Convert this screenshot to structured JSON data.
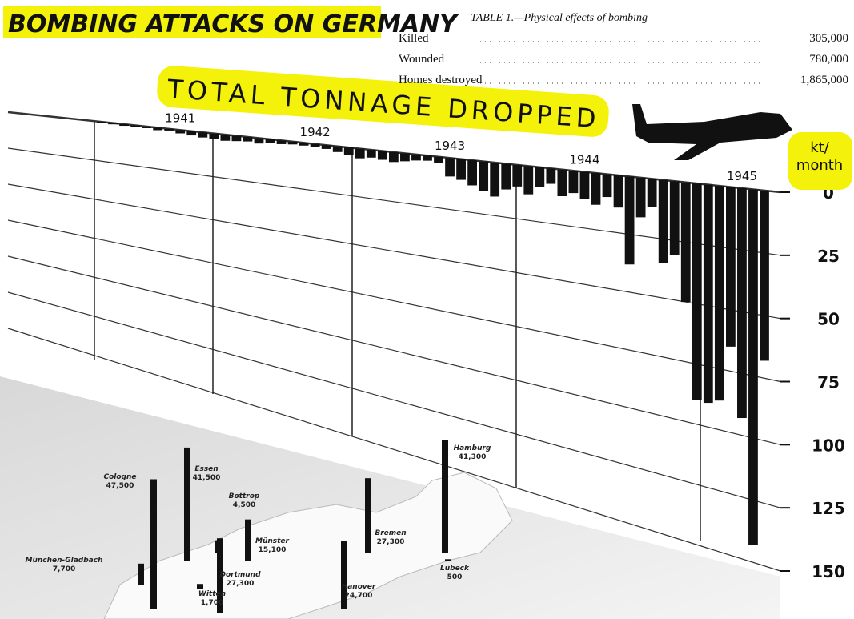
{
  "chart_data": {
    "type": "bar",
    "title": "BOMBING ATTACKS ON GERMANY",
    "subtitle": "TOTAL TONNAGE DROPPED",
    "y_label": "kt/ month",
    "categories": [
      null,
      null,
      null,
      null,
      null,
      null,
      null,
      "1941",
      null,
      null,
      null,
      null,
      null,
      null,
      null,
      null,
      null,
      null,
      null,
      "1942",
      null,
      null,
      null,
      null,
      null,
      null,
      null,
      null,
      null,
      null,
      null,
      "1943",
      null,
      null,
      null,
      null,
      null,
      null,
      null,
      null,
      null,
      null,
      null,
      "1944",
      null,
      null,
      null,
      null,
      null,
      null,
      null,
      null,
      null,
      null,
      null,
      null,
      null,
      "1945",
      null,
      null
    ],
    "values": [
      0.5,
      0.8,
      1,
      1.2,
      1,
      1.5,
      1,
      2,
      2.5,
      3,
      3,
      3.5,
      3,
      2.5,
      3,
      2,
      2,
      1.5,
      1.5,
      1.5,
      2,
      3,
      4,
      5,
      4,
      4.5,
      5,
      4,
      3,
      2.5,
      3,
      9,
      10,
      12,
      14,
      16,
      12,
      10,
      13,
      9,
      7,
      12,
      10,
      12,
      14,
      10,
      14,
      38,
      17,
      12,
      35,
      31,
      50,
      90,
      90,
      88,
      65,
      93,
      143,
      68
    ],
    "color": "#111111",
    "ylim": [
      0,
      150
    ],
    "yticks": [
      0,
      25,
      50,
      75,
      100,
      125,
      150
    ],
    "grid": true,
    "cities": {
      "names": [
        "Cologne",
        "Essen",
        "Bottrop",
        "München-Gladbach",
        "Münster",
        "Dortmund",
        "Witten",
        "Bremen",
        "Hanover",
        "Hamburg",
        "Lübeck"
      ],
      "values": [
        47500,
        41500,
        4500,
        7700,
        15100,
        27300,
        1700,
        27300,
        24700,
        41300,
        500
      ],
      "value_labels": [
        "47,500",
        "41,500",
        "4,500",
        "7,700",
        "15,100",
        "27,300",
        "1,700",
        "27,300",
        "24,700",
        "41,300",
        "500"
      ]
    }
  },
  "table": {
    "title": "TABLE 1.—Physical effects of bombing",
    "rows": [
      [
        "Killed",
        "305,000"
      ],
      [
        "Wounded",
        "780,000"
      ],
      [
        "Homes destroyed",
        "1,865,000"
      ]
    ]
  }
}
